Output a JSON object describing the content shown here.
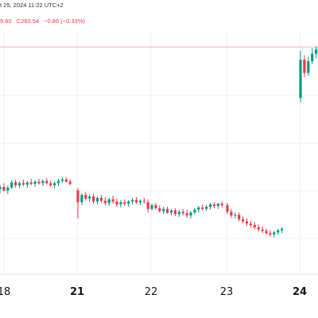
{
  "header": {
    "datetime": "t 25, 2024 11:22 UTC+2",
    "low_fragment": "9.60",
    "close_label": "C260.54",
    "change": "−0.86 (−0.33%)"
  },
  "colors": {
    "up": "#089981",
    "down": "#f23645",
    "price_line": "#f23645",
    "grid": "#eef0f3",
    "text": "#131722"
  },
  "chart_data": {
    "type": "candlestick",
    "x_ticks": [
      {
        "label": "18",
        "bold": false
      },
      {
        "label": "21",
        "bold": true
      },
      {
        "label": "22",
        "bold": false
      },
      {
        "label": "23",
        "bold": false
      },
      {
        "label": "24",
        "bold": true
      }
    ],
    "ylim": [
      245.5,
      262.0
    ],
    "last_close": 260.54,
    "candles": [
      {
        "o": 251.3,
        "h": 251.6,
        "l": 251.0,
        "c": 251.45
      },
      {
        "o": 251.45,
        "h": 251.7,
        "l": 251.15,
        "c": 251.2
      },
      {
        "o": 251.2,
        "h": 251.55,
        "l": 250.95,
        "c": 251.4
      },
      {
        "o": 251.4,
        "h": 251.9,
        "l": 251.3,
        "c": 251.75
      },
      {
        "o": 251.75,
        "h": 251.95,
        "l": 251.4,
        "c": 251.55
      },
      {
        "o": 251.55,
        "h": 251.8,
        "l": 251.35,
        "c": 251.7
      },
      {
        "o": 251.7,
        "h": 251.95,
        "l": 251.5,
        "c": 251.6
      },
      {
        "o": 251.6,
        "h": 251.85,
        "l": 251.4,
        "c": 251.75
      },
      {
        "o": 251.75,
        "h": 252.0,
        "l": 251.55,
        "c": 251.65
      },
      {
        "o": 251.65,
        "h": 251.9,
        "l": 251.45,
        "c": 251.8
      },
      {
        "o": 251.8,
        "h": 252.0,
        "l": 251.6,
        "c": 251.7
      },
      {
        "o": 251.7,
        "h": 251.95,
        "l": 251.5,
        "c": 251.85
      },
      {
        "o": 251.85,
        "h": 252.05,
        "l": 251.6,
        "c": 251.7
      },
      {
        "o": 251.7,
        "h": 251.9,
        "l": 251.45,
        "c": 251.55
      },
      {
        "o": 251.55,
        "h": 251.8,
        "l": 251.35,
        "c": 251.7
      },
      {
        "o": 251.7,
        "h": 252.0,
        "l": 251.5,
        "c": 251.85
      },
      {
        "o": 251.85,
        "h": 252.1,
        "l": 251.7,
        "c": 251.95
      },
      {
        "o": 251.95,
        "h": 252.1,
        "l": 251.75,
        "c": 251.8
      },
      {
        "o": 251.8,
        "h": 251.95,
        "l": 251.55,
        "c": 251.65
      },
      {
        "o": 251.2,
        "h": 251.35,
        "l": 249.3,
        "c": 250.4
      },
      {
        "o": 250.4,
        "h": 251.0,
        "l": 250.2,
        "c": 250.9
      },
      {
        "o": 250.9,
        "h": 251.1,
        "l": 250.5,
        "c": 250.65
      },
      {
        "o": 250.65,
        "h": 250.95,
        "l": 250.4,
        "c": 250.8
      },
      {
        "o": 250.8,
        "h": 251.0,
        "l": 250.3,
        "c": 250.45
      },
      {
        "o": 250.45,
        "h": 250.8,
        "l": 250.25,
        "c": 250.7
      },
      {
        "o": 250.7,
        "h": 250.9,
        "l": 250.35,
        "c": 250.5
      },
      {
        "o": 250.5,
        "h": 250.75,
        "l": 250.2,
        "c": 250.35
      },
      {
        "o": 250.35,
        "h": 250.7,
        "l": 250.15,
        "c": 250.6
      },
      {
        "o": 250.6,
        "h": 250.85,
        "l": 250.3,
        "c": 250.45
      },
      {
        "o": 250.45,
        "h": 250.65,
        "l": 250.1,
        "c": 250.25
      },
      {
        "o": 250.25,
        "h": 250.55,
        "l": 250.05,
        "c": 250.4
      },
      {
        "o": 250.4,
        "h": 250.6,
        "l": 250.15,
        "c": 250.3
      },
      {
        "o": 250.3,
        "h": 250.55,
        "l": 250.1,
        "c": 250.45
      },
      {
        "o": 250.45,
        "h": 250.7,
        "l": 250.25,
        "c": 250.55
      },
      {
        "o": 250.55,
        "h": 250.75,
        "l": 250.3,
        "c": 250.4
      },
      {
        "o": 250.4,
        "h": 250.6,
        "l": 250.2,
        "c": 250.5
      },
      {
        "o": 250.5,
        "h": 250.7,
        "l": 250.3,
        "c": 250.45
      },
      {
        "o": 250.4,
        "h": 250.6,
        "l": 249.7,
        "c": 249.95
      },
      {
        "o": 249.95,
        "h": 250.3,
        "l": 249.85,
        "c": 250.2
      },
      {
        "o": 250.2,
        "h": 250.35,
        "l": 249.9,
        "c": 250.0
      },
      {
        "o": 250.0,
        "h": 250.2,
        "l": 249.7,
        "c": 249.8
      },
      {
        "o": 249.8,
        "h": 250.1,
        "l": 249.6,
        "c": 249.95
      },
      {
        "o": 249.95,
        "h": 250.1,
        "l": 249.6,
        "c": 249.7
      },
      {
        "o": 249.7,
        "h": 249.95,
        "l": 249.5,
        "c": 249.85
      },
      {
        "o": 249.85,
        "h": 250.0,
        "l": 249.45,
        "c": 249.6
      },
      {
        "o": 249.6,
        "h": 249.9,
        "l": 249.4,
        "c": 249.75
      },
      {
        "o": 249.75,
        "h": 249.95,
        "l": 249.5,
        "c": 249.65
      },
      {
        "o": 249.65,
        "h": 249.9,
        "l": 249.35,
        "c": 249.5
      },
      {
        "o": 249.5,
        "h": 249.8,
        "l": 249.3,
        "c": 249.7
      },
      {
        "o": 249.7,
        "h": 250.0,
        "l": 249.55,
        "c": 249.9
      },
      {
        "o": 249.9,
        "h": 250.15,
        "l": 249.7,
        "c": 250.05
      },
      {
        "o": 250.05,
        "h": 250.25,
        "l": 249.85,
        "c": 249.95
      },
      {
        "o": 249.95,
        "h": 250.2,
        "l": 249.8,
        "c": 250.1
      },
      {
        "o": 250.1,
        "h": 250.35,
        "l": 249.9,
        "c": 250.25
      },
      {
        "o": 250.25,
        "h": 250.4,
        "l": 250.0,
        "c": 250.15
      },
      {
        "o": 250.15,
        "h": 250.35,
        "l": 249.95,
        "c": 250.3
      },
      {
        "o": 250.3,
        "h": 250.45,
        "l": 250.05,
        "c": 250.2
      },
      {
        "o": 250.2,
        "h": 250.35,
        "l": 249.6,
        "c": 249.75
      },
      {
        "o": 249.75,
        "h": 249.95,
        "l": 249.35,
        "c": 249.5
      },
      {
        "o": 249.5,
        "h": 249.7,
        "l": 249.3,
        "c": 249.55
      },
      {
        "o": 249.55,
        "h": 249.7,
        "l": 249.1,
        "c": 249.25
      },
      {
        "o": 249.25,
        "h": 249.45,
        "l": 248.95,
        "c": 249.1
      },
      {
        "o": 249.1,
        "h": 249.3,
        "l": 248.8,
        "c": 248.95
      },
      {
        "o": 248.95,
        "h": 249.15,
        "l": 248.7,
        "c": 248.85
      },
      {
        "o": 248.85,
        "h": 249.05,
        "l": 248.55,
        "c": 248.7
      },
      {
        "o": 248.7,
        "h": 248.9,
        "l": 248.4,
        "c": 248.55
      },
      {
        "o": 248.55,
        "h": 248.75,
        "l": 248.3,
        "c": 248.45
      },
      {
        "o": 248.45,
        "h": 248.6,
        "l": 248.2,
        "c": 248.3
      },
      {
        "o": 248.3,
        "h": 248.5,
        "l": 248.05,
        "c": 248.2
      },
      {
        "o": 248.2,
        "h": 248.45,
        "l": 248.0,
        "c": 248.35
      },
      {
        "o": 248.35,
        "h": 248.6,
        "l": 248.2,
        "c": 248.5
      },
      {
        "o": 248.5,
        "h": 248.7,
        "l": 248.3,
        "c": 248.6
      },
      {
        "o": 257.5,
        "h": 260.7,
        "l": 257.2,
        "c": 260.1
      },
      {
        "o": 260.1,
        "h": 260.4,
        "l": 258.9,
        "c": 259.2
      },
      {
        "o": 259.2,
        "h": 260.3,
        "l": 259.0,
        "c": 260.0
      },
      {
        "o": 260.0,
        "h": 260.9,
        "l": 259.8,
        "c": 260.5
      },
      {
        "o": 260.5,
        "h": 261.0,
        "l": 260.2,
        "c": 260.8
      },
      {
        "o": 260.8,
        "h": 261.3,
        "l": 260.4,
        "c": 261.0
      },
      {
        "o": 261.0,
        "h": 261.4,
        "l": 260.6,
        "c": 260.9
      },
      {
        "o": 260.9,
        "h": 261.2,
        "l": 260.5,
        "c": 260.7
      },
      {
        "o": 260.7,
        "h": 261.0,
        "l": 260.3,
        "c": 260.54
      }
    ]
  }
}
